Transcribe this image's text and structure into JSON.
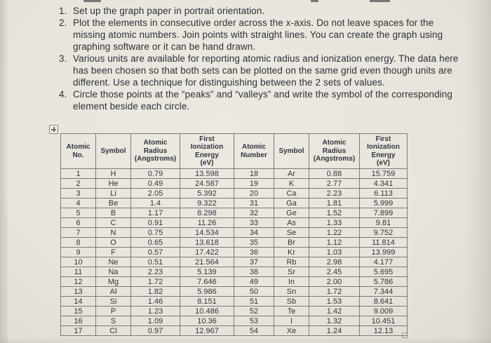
{
  "page": {
    "instructions": [
      {
        "number": "1.",
        "text": "Set up the graph paper in portrait orientation."
      },
      {
        "number": "2.",
        "text": "Plot the elements in consecutive order across the x-axis. Do not leave spaces for the missing atomic numbers. Join points with straight lines. You can create the graph using graphing software or it can be hand drawn."
      },
      {
        "number": "3.",
        "text": "Various units are available for reporting atomic radius and ionization energy. The data here has been chosen so that both sets can be plotted on the same grid even though units are different.  Use a technique for distinguishing between the 2 sets of values."
      },
      {
        "number": "4.",
        "text": "Circle those points at the “peaks” and “valleys” and write the symbol of the corresponding element beside each circle."
      }
    ]
  },
  "table": {
    "headers": [
      "Atomic\nNo.",
      "Symbol",
      "Atomic\nRadius\n(Angstroms)",
      "First\nIonization\nEnergy\n(eV)",
      "Atomic\nNumber",
      "Symbol",
      "Atomic\nRadius\n(Angstroms)",
      "First\nIonization\nEnergy\n(eV)"
    ],
    "column_names": [
      "cell-atomic-no",
      "cell-symbol",
      "cell-atomic-radius",
      "cell-ionization-energy",
      "cell-atomic-no",
      "cell-symbol",
      "cell-atomic-radius",
      "cell-ionization-energy"
    ],
    "rows": [
      [
        "1",
        "H",
        "0.79",
        "13.598",
        "18",
        "Ar",
        "0.88",
        "15.759"
      ],
      [
        "2",
        "He",
        "0.49",
        "24.587",
        "19",
        "K",
        "2.77",
        "4.341"
      ],
      [
        "3",
        "Li",
        "2.05",
        "5.392",
        "20",
        "Ca",
        "2.23",
        "6.113"
      ],
      [
        "4",
        "Be",
        "1.4",
        "9.322",
        "31",
        "Ga",
        "1.81",
        "5.999"
      ],
      [
        "5",
        "B",
        "1.17",
        "8.298",
        "32",
        "Ge",
        "1.52",
        "7.899"
      ],
      [
        "6",
        "C",
        "0.91",
        "11.26",
        "33",
        "As",
        "1.33",
        "9.81"
      ],
      [
        "7",
        "N",
        "0.75",
        "14.534",
        "34",
        "Se",
        "1.22",
        "9.752"
      ],
      [
        "8",
        "O",
        "0.65",
        "13.618",
        "35",
        "Br",
        "1.12",
        "11.814"
      ],
      [
        "9",
        "F",
        "0.57",
        "17.422",
        "36",
        "Kr",
        "1.03",
        "13.999"
      ],
      [
        "10",
        "Ne",
        "0.51",
        "21.564",
        "37",
        "Rb",
        "2.98",
        "4.177"
      ],
      [
        "11",
        "Na",
        "2.23",
        "5.139",
        "38",
        "Sr",
        "2.45",
        "5.695"
      ],
      [
        "12",
        "Mg",
        "1.72",
        "7.646",
        "49",
        "In",
        "2.00",
        "5.786"
      ],
      [
        "13",
        "Al",
        "1.82",
        "5.986",
        "50",
        "Sn",
        "1.72",
        "7.344"
      ],
      [
        "14",
        "Si",
        "1.46",
        "8.151",
        "51",
        "Sb",
        "1.53",
        "8.641"
      ],
      [
        "15",
        "P",
        "1.23",
        "10.486",
        "52",
        "Te",
        "1.42",
        "9.009"
      ],
      [
        "16",
        "S",
        "1.09",
        "10.36",
        "53",
        "I",
        "1.32",
        "10.451"
      ],
      [
        "17",
        "Cl",
        "0.97",
        "12.967",
        "54",
        "Xe",
        "1.24",
        "12.13"
      ]
    ],
    "misspelled_cells": [
      [
        2,
        1
      ],
      [
        11,
        1
      ],
      [
        13,
        1
      ],
      [
        0,
        5
      ],
      [
        11,
        5
      ],
      [
        14,
        5
      ]
    ]
  },
  "icons": {
    "table_move_handle": "plus-arrows-in-box",
    "table_resize_handle": "small-square"
  },
  "colors": {
    "paper": "#e8e5dc",
    "ink": "#2f3038",
    "table_border": "#7b7b76",
    "spellcheck_underline": "#a24a3e"
  }
}
